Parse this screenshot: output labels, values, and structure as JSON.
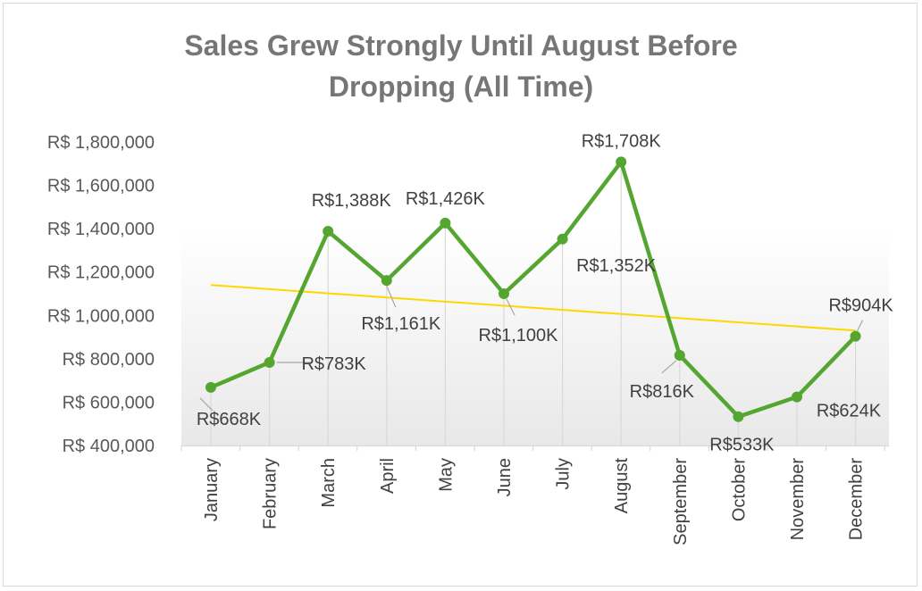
{
  "chart_data": {
    "type": "line",
    "title_line1": "Sales Grew Strongly Until August Before",
    "title_line2": "Dropping (All Time)",
    "categories": [
      "January",
      "February",
      "March",
      "April",
      "May",
      "June",
      "July",
      "August",
      "September",
      "October",
      "November",
      "December"
    ],
    "series": [
      {
        "values": [
          668000,
          783000,
          1388000,
          1161000,
          1426000,
          1100000,
          1352000,
          1708000,
          816000,
          533000,
          624000,
          904000
        ],
        "labels": [
          "R$668K",
          "R$783K",
          "R$1,388K",
          "R$1,161K",
          "R$1,426K",
          "R$1,100K",
          "R$1,352K",
          "R$1,708K",
          "R$816K",
          "R$533K",
          "R$624K",
          "R$904K"
        ],
        "color": "#55a630"
      }
    ],
    "trendline": {
      "type": "linear",
      "color": "#ffd700",
      "start": 1140000,
      "end": 930000
    },
    "ylim": [
      400000,
      1800000
    ],
    "yticks": [
      400000,
      600000,
      800000,
      1000000,
      1200000,
      1400000,
      1600000,
      1800000
    ],
    "ytick_labels": [
      "R$ 400,000",
      "R$ 600,000",
      "R$ 800,000",
      "R$ 1,000,000",
      "R$ 1,200,000",
      "R$ 1,400,000",
      "R$ 1,600,000",
      "R$ 1,800,000"
    ],
    "xlabel": "",
    "ylabel": "",
    "grid": false,
    "legend": "none"
  }
}
